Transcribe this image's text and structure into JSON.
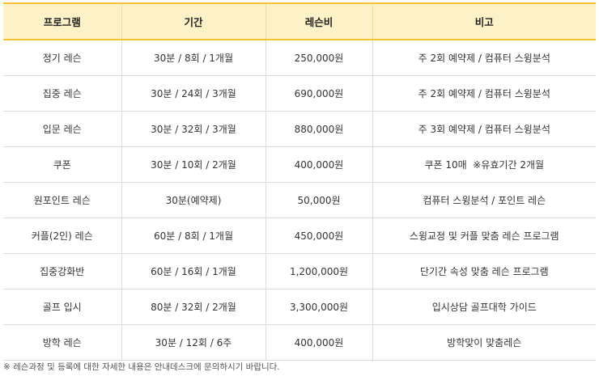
{
  "table": {
    "headers": [
      "프로그램",
      "기간",
      "레슨비",
      "비고"
    ],
    "rows": [
      {
        "program": "정기 레슨",
        "period": "30분 / 8회 / 1개월",
        "fee": "250,000원",
        "note": "주 2회 예약제 / 컴퓨터 스윙분석"
      },
      {
        "program": "집중 레슨",
        "period": "30분 / 24회 / 3개월",
        "fee": "690,000원",
        "note": "주 2회 예약제 / 컴퓨터 스윙분석"
      },
      {
        "program": "입문 레슨",
        "period": "30분 / 32회 / 3개월",
        "fee": "880,000원",
        "note": "주 3회 예약제 / 컴퓨터 스윙분석"
      },
      {
        "program": "쿠폰",
        "period": "30분 / 10회 / 2개월",
        "fee": "400,000원",
        "note": "쿠폰 10매  ※유효기간 2개월"
      },
      {
        "program": "원포인트 레슨",
        "period": "30분(예약제)",
        "fee": "50,000원",
        "note": "컴퓨터 스윙분석 / 포인트 레슨"
      },
      {
        "program": "커플(2인) 레슨",
        "period": "60분 / 8회 / 1개월",
        "fee": "450,000원",
        "note": "스윙교정 및 커플 맞춤 레슨 프로그램"
      },
      {
        "program": "집중강화반",
        "period": "60분 / 16회 / 1개월",
        "fee": "1,200,000원",
        "note": "단기간 속성 맞춤 레슨 프로그램"
      },
      {
        "program": "골프 입시",
        "period": "80분 / 32회 / 2개월",
        "fee": "3,300,000원",
        "note": "입시상담 골프대학 가이드"
      },
      {
        "program": "방학 레슨",
        "period": "30분 / 12회 / 6주",
        "fee": "400,000원",
        "note": "방학맞이 맞춤레슨"
      }
    ]
  },
  "footnote": "※ 레슨과정 및 등록에 대한 자세한 내용은 안내데스크에 문의하시기 바랍니다."
}
